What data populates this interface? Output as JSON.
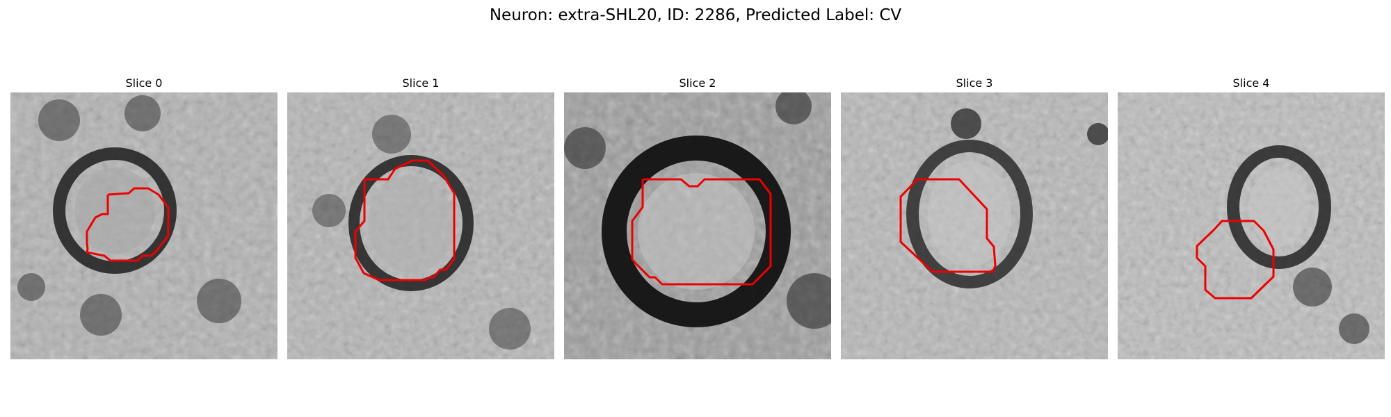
{
  "figure": {
    "title": "Neuron: extra-SHL20, ID: 2286, Predicted Label: CV"
  },
  "contour_color": "#ee0000",
  "panels": [
    {
      "title": "Slice 0"
    },
    {
      "title": "Slice 1"
    },
    {
      "title": "Slice 2"
    },
    {
      "title": "Slice 3"
    },
    {
      "title": "Slice 4"
    }
  ]
}
